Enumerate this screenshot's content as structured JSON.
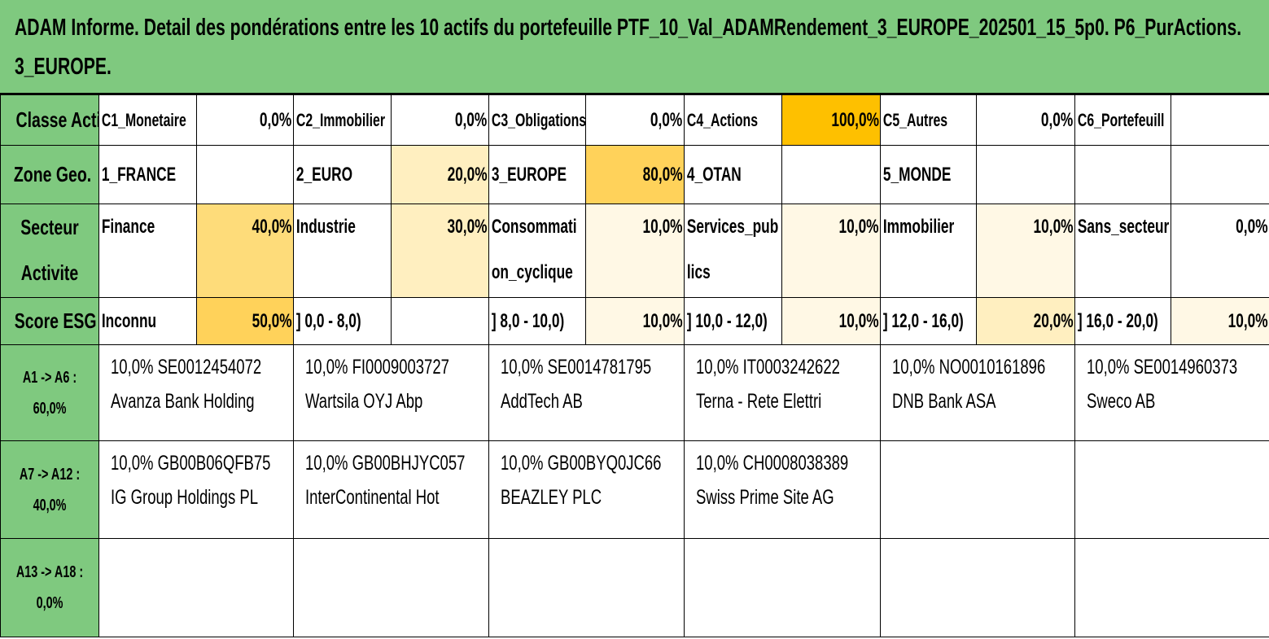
{
  "title": {
    "line1": "ADAM Informe. Detail des pondérations entre les 10 actifs du portefeuille PTF_10_Val_ADAMRendement_3_EUROPE_202501_15_5p0. P6_PurActions.",
    "line2": "3_EUROPE."
  },
  "classe_actif": {
    "header": "Classe Actif",
    "items": [
      {
        "label": "C1_Monetaire",
        "value": "0,0%"
      },
      {
        "label": "C2_Immobilier",
        "value": "0,0%"
      },
      {
        "label": "C3_Obligations",
        "value": "0,0%"
      },
      {
        "label": "C4_Actions",
        "value": "100,0%"
      },
      {
        "label": "C5_Autres",
        "value": "0,0%"
      },
      {
        "label": "C6_Portefeuill",
        "value": ""
      }
    ]
  },
  "zone_geo": {
    "header": "Zone Geo.",
    "items": [
      {
        "label": "1_FRANCE",
        "value": ""
      },
      {
        "label": "2_EURO",
        "value": "20,0%"
      },
      {
        "label": "3_EUROPE",
        "value": "80,0%"
      },
      {
        "label": "4_OTAN",
        "value": ""
      },
      {
        "label": "5_MONDE",
        "value": ""
      },
      {
        "label": "",
        "value": ""
      }
    ]
  },
  "secteur": {
    "header_line1": "Secteur",
    "header_line2": "Activite",
    "items": [
      {
        "label1": "Finance",
        "label2": "",
        "value": "40,0%"
      },
      {
        "label1": "Industrie",
        "label2": "",
        "value": "30,0%"
      },
      {
        "label1": "Consommati",
        "label2": "on_cyclique",
        "value": "10,0%"
      },
      {
        "label1": "Services_pub",
        "label2": "lics",
        "value": "10,0%"
      },
      {
        "label1": "Immobilier",
        "label2": "",
        "value": "10,0%"
      },
      {
        "label1": "Sans_secteur",
        "label2": "",
        "value": "0,0%"
      }
    ]
  },
  "score_esg": {
    "header": "Score ESG",
    "items": [
      {
        "label": "Inconnu",
        "value": "50,0%"
      },
      {
        "label": "] 0,0 - 8,0)",
        "value": ""
      },
      {
        "label": "] 8,0 - 10,0)",
        "value": "10,0%"
      },
      {
        "label": "] 10,0 - 12,0)",
        "value": "10,0%"
      },
      {
        "label": "] 12,0 - 16,0)",
        "value": "20,0%"
      },
      {
        "label": "] 16,0 - 20,0)",
        "value": "10,0%"
      }
    ]
  },
  "assets": [
    {
      "header_line1": "A1 -> A6 :",
      "header_line2": "60,0%",
      "items": [
        {
          "line1": "10,0% SE0012454072",
          "line2": "Avanza Bank Holding"
        },
        {
          "line1": "10,0% FI0009003727",
          "line2": "Wartsila OYJ Abp"
        },
        {
          "line1": "10,0% SE0014781795",
          "line2": "AddTech AB"
        },
        {
          "line1": "10,0% IT0003242622",
          "line2": "Terna - Rete Elettri"
        },
        {
          "line1": "10,0% NO0010161896",
          "line2": "DNB Bank ASA"
        },
        {
          "line1": "10,0% SE0014960373",
          "line2": "Sweco AB"
        }
      ]
    },
    {
      "header_line1": "A7 -> A12 :",
      "header_line2": "40,0%",
      "items": [
        {
          "line1": "10,0% GB00B06QFB75",
          "line2": "IG Group Holdings PL"
        },
        {
          "line1": "10,0% GB00BHJYC057",
          "line2": "InterContinental Hot"
        },
        {
          "line1": "10,0% GB00BYQ0JC66",
          "line2": "BEAZLEY PLC"
        },
        {
          "line1": "10,0% CH0008038389",
          "line2": "Swiss Prime Site AG"
        },
        {
          "line1": "",
          "line2": ""
        },
        {
          "line1": "",
          "line2": ""
        }
      ]
    },
    {
      "header_line1": "A13 -> A18 :",
      "header_line2": "0,0%",
      "items": [
        {
          "line1": "",
          "line2": ""
        },
        {
          "line1": "",
          "line2": ""
        },
        {
          "line1": "",
          "line2": ""
        },
        {
          "line1": "",
          "line2": ""
        },
        {
          "line1": "",
          "line2": ""
        },
        {
          "line1": "",
          "line2": ""
        }
      ]
    }
  ]
}
